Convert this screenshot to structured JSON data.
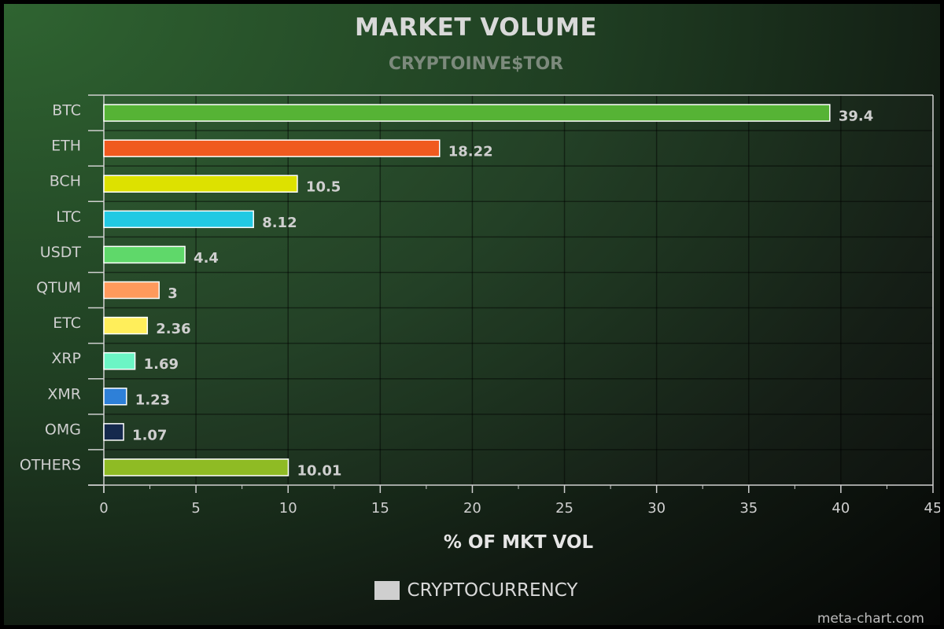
{
  "chart_data": {
    "type": "bar",
    "orientation": "horizontal",
    "title": "MARKET VOLUME",
    "subtitle": "CRYPTOINVE$TOR",
    "xlabel": "% OF MKT VOL",
    "ylabel": "",
    "xlim": [
      0,
      45
    ],
    "xticks": [
      0,
      5,
      10,
      15,
      20,
      25,
      30,
      35,
      40,
      45
    ],
    "grid": true,
    "legend_position": "bottom-center",
    "categories": [
      "BTC",
      "ETH",
      "BCH",
      "LTC",
      "USDT",
      "QTUM",
      "ETC",
      "XRP",
      "XMR",
      "OMG",
      "OTHERS"
    ],
    "series": [
      {
        "name": "CRYPTOCURRENCY",
        "values": [
          39.4,
          18.22,
          10.5,
          8.12,
          4.4,
          3,
          2.36,
          1.69,
          1.23,
          1.07,
          10.01
        ],
        "data_labels": [
          "39.4",
          "18.22",
          "10.5",
          "8.12",
          "4.4",
          "3",
          "2.36",
          "1.69",
          "1.23",
          "1.07",
          "10.01"
        ]
      }
    ],
    "colors": [
      "#56b335",
      "#f05a1f",
      "#dde100",
      "#22c9e3",
      "#5fd86a",
      "#ff9a5c",
      "#ffee5a",
      "#6cf5c5",
      "#2e80d8",
      "#15294d",
      "#8fbb24"
    ],
    "legend_swatch_color": "#cfcfcf"
  },
  "credit": "meta-chart.com"
}
